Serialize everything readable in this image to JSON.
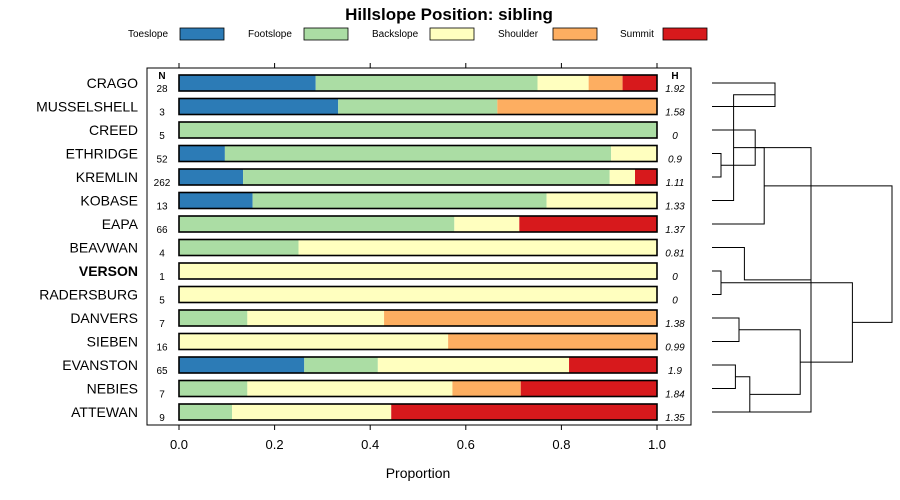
{
  "chart_data": {
    "type": "bar",
    "orientation": "horizontal",
    "stacked": true,
    "title": "Hillslope Position: sibling",
    "xlabel": "Proportion",
    "ylabel": "",
    "xlim": [
      0,
      1
    ],
    "xticks": [
      "0.0",
      "0.2",
      "0.4",
      "0.6",
      "0.8",
      "1.0"
    ],
    "n_header": "N",
    "h_header": "H",
    "legend_position": "top",
    "series": [
      {
        "name": "Toeslope",
        "color": "#2c7bb6"
      },
      {
        "name": "Footslope",
        "color": "#abdda4"
      },
      {
        "name": "Backslope",
        "color": "#ffffbf"
      },
      {
        "name": "Shoulder",
        "color": "#fdae61"
      },
      {
        "name": "Summit",
        "color": "#d7191c"
      }
    ],
    "rows": [
      {
        "label": "CRAGO",
        "n": "28",
        "h": "1.92",
        "bold": false,
        "values": [
          0.286,
          0.464,
          0.107,
          0.071,
          0.072
        ]
      },
      {
        "label": "MUSSELSHELL",
        "n": "3",
        "h": "1.58",
        "bold": false,
        "values": [
          0.333,
          0.333,
          0.0,
          0.334,
          0.0
        ]
      },
      {
        "label": "CREED",
        "n": "5",
        "h": "0",
        "bold": false,
        "values": [
          0.0,
          1.0,
          0.0,
          0.0,
          0.0
        ]
      },
      {
        "label": "ETHRIDGE",
        "n": "52",
        "h": "0.9",
        "bold": false,
        "values": [
          0.096,
          0.808,
          0.096,
          0.0,
          0.0
        ]
      },
      {
        "label": "KREMLIN",
        "n": "262",
        "h": "1.11",
        "bold": false,
        "values": [
          0.134,
          0.767,
          0.053,
          0.0,
          0.046
        ]
      },
      {
        "label": "KOBASE",
        "n": "13",
        "h": "1.33",
        "bold": false,
        "values": [
          0.154,
          0.615,
          0.231,
          0.0,
          0.0
        ]
      },
      {
        "label": "EAPA",
        "n": "66",
        "h": "1.37",
        "bold": false,
        "values": [
          0.0,
          0.576,
          0.136,
          0.0,
          0.288
        ]
      },
      {
        "label": "BEAVWAN",
        "n": "4",
        "h": "0.81",
        "bold": false,
        "values": [
          0.0,
          0.25,
          0.75,
          0.0,
          0.0
        ]
      },
      {
        "label": "VERSON",
        "n": "1",
        "h": "0",
        "bold": true,
        "values": [
          0.0,
          0.0,
          1.0,
          0.0,
          0.0
        ]
      },
      {
        "label": "RADERSBURG",
        "n": "5",
        "h": "0",
        "bold": false,
        "values": [
          0.0,
          0.0,
          1.0,
          0.0,
          0.0
        ]
      },
      {
        "label": "DANVERS",
        "n": "7",
        "h": "1.38",
        "bold": false,
        "values": [
          0.0,
          0.143,
          0.286,
          0.571,
          0.0
        ]
      },
      {
        "label": "SIEBEN",
        "n": "16",
        "h": "0.99",
        "bold": false,
        "values": [
          0.0,
          0.0,
          0.563,
          0.437,
          0.0
        ]
      },
      {
        "label": "EVANSTON",
        "n": "65",
        "h": "1.9",
        "bold": false,
        "values": [
          0.262,
          0.154,
          0.4,
          0.0,
          0.184
        ]
      },
      {
        "label": "NEBIES",
        "n": "7",
        "h": "1.84",
        "bold": false,
        "values": [
          0.0,
          0.143,
          0.429,
          0.143,
          0.285
        ]
      },
      {
        "label": "ATTEWAN",
        "n": "9",
        "h": "1.35",
        "bold": false,
        "values": [
          0.0,
          0.111,
          0.333,
          0.0,
          0.556
        ]
      }
    ],
    "dendrogram": {
      "description": "hierarchical clustering of rows (leaf order top to bottom)",
      "merges": [
        [
          0,
          1,
          0.35
        ],
        [
          3,
          4,
          0.05
        ],
        [
          5,
          15,
          0.12
        ],
        [
          2,
          16,
          0.24
        ],
        [
          6,
          17,
          0.29
        ],
        [
          14,
          18,
          0.55
        ],
        [
          8,
          9,
          0.05
        ],
        [
          7,
          20,
          0.18
        ],
        [
          10,
          11,
          0.15
        ],
        [
          12,
          13,
          0.13
        ],
        [
          14,
          24,
          0.21
        ],
        [
          23,
          25,
          0.49
        ],
        [
          21,
          26,
          0.78
        ],
        [
          19,
          27,
          1.0
        ]
      ]
    }
  }
}
